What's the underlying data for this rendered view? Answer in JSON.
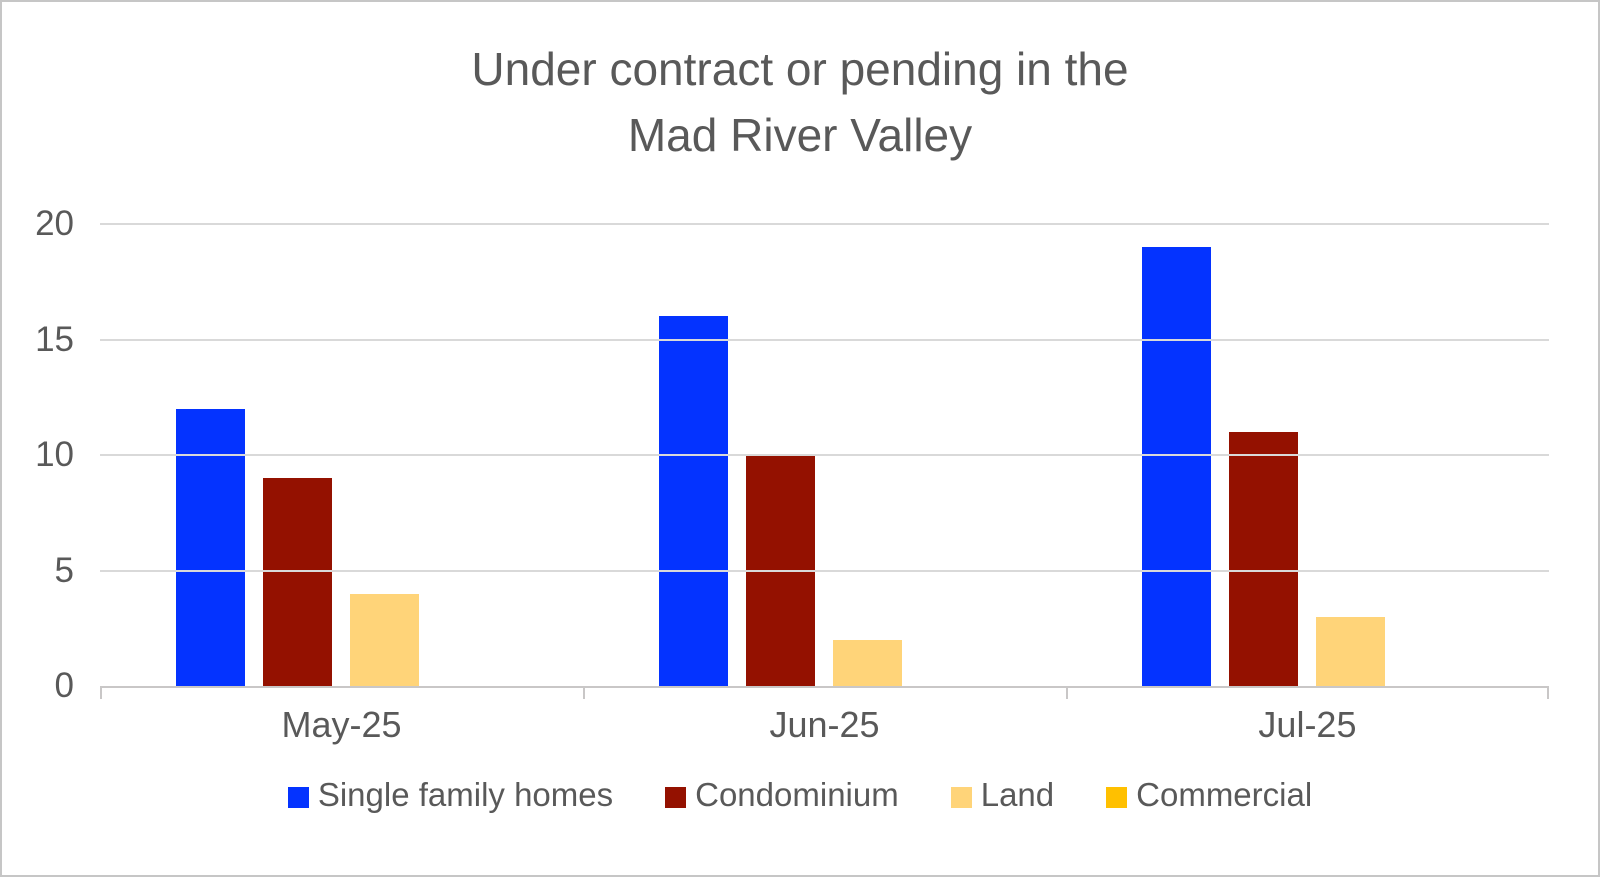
{
  "title": {
    "line1": "Under contract or pending in the",
    "line2": "Mad River Valley"
  },
  "chart_data": {
    "type": "bar",
    "title": "Under contract or pending in the Mad River Valley",
    "categories": [
      "May-25",
      "Jun-25",
      "Jul-25"
    ],
    "series": [
      {
        "name": "Single family homes",
        "color": "#0433FF",
        "values": [
          12,
          16,
          19
        ]
      },
      {
        "name": "Condominium",
        "color": "#941100",
        "values": [
          9,
          10,
          11
        ]
      },
      {
        "name": "Land",
        "color": "#FFD479",
        "values": [
          4,
          2,
          3
        ]
      },
      {
        "name": "Commercial",
        "color": "#FFC000",
        "values": [
          0,
          0,
          0
        ]
      }
    ],
    "xlabel": "",
    "ylabel": "",
    "ylim": [
      0,
      20
    ],
    "y_ticks": [
      20,
      15,
      10,
      5,
      0
    ],
    "grid": true,
    "legend_position": "bottom"
  },
  "colors": {
    "text": "#595959",
    "gridline": "#D9D9D9",
    "axis_line": "#C9C7C7",
    "frame_border": "#C6C6C6",
    "background": "#FFFFFF"
  }
}
